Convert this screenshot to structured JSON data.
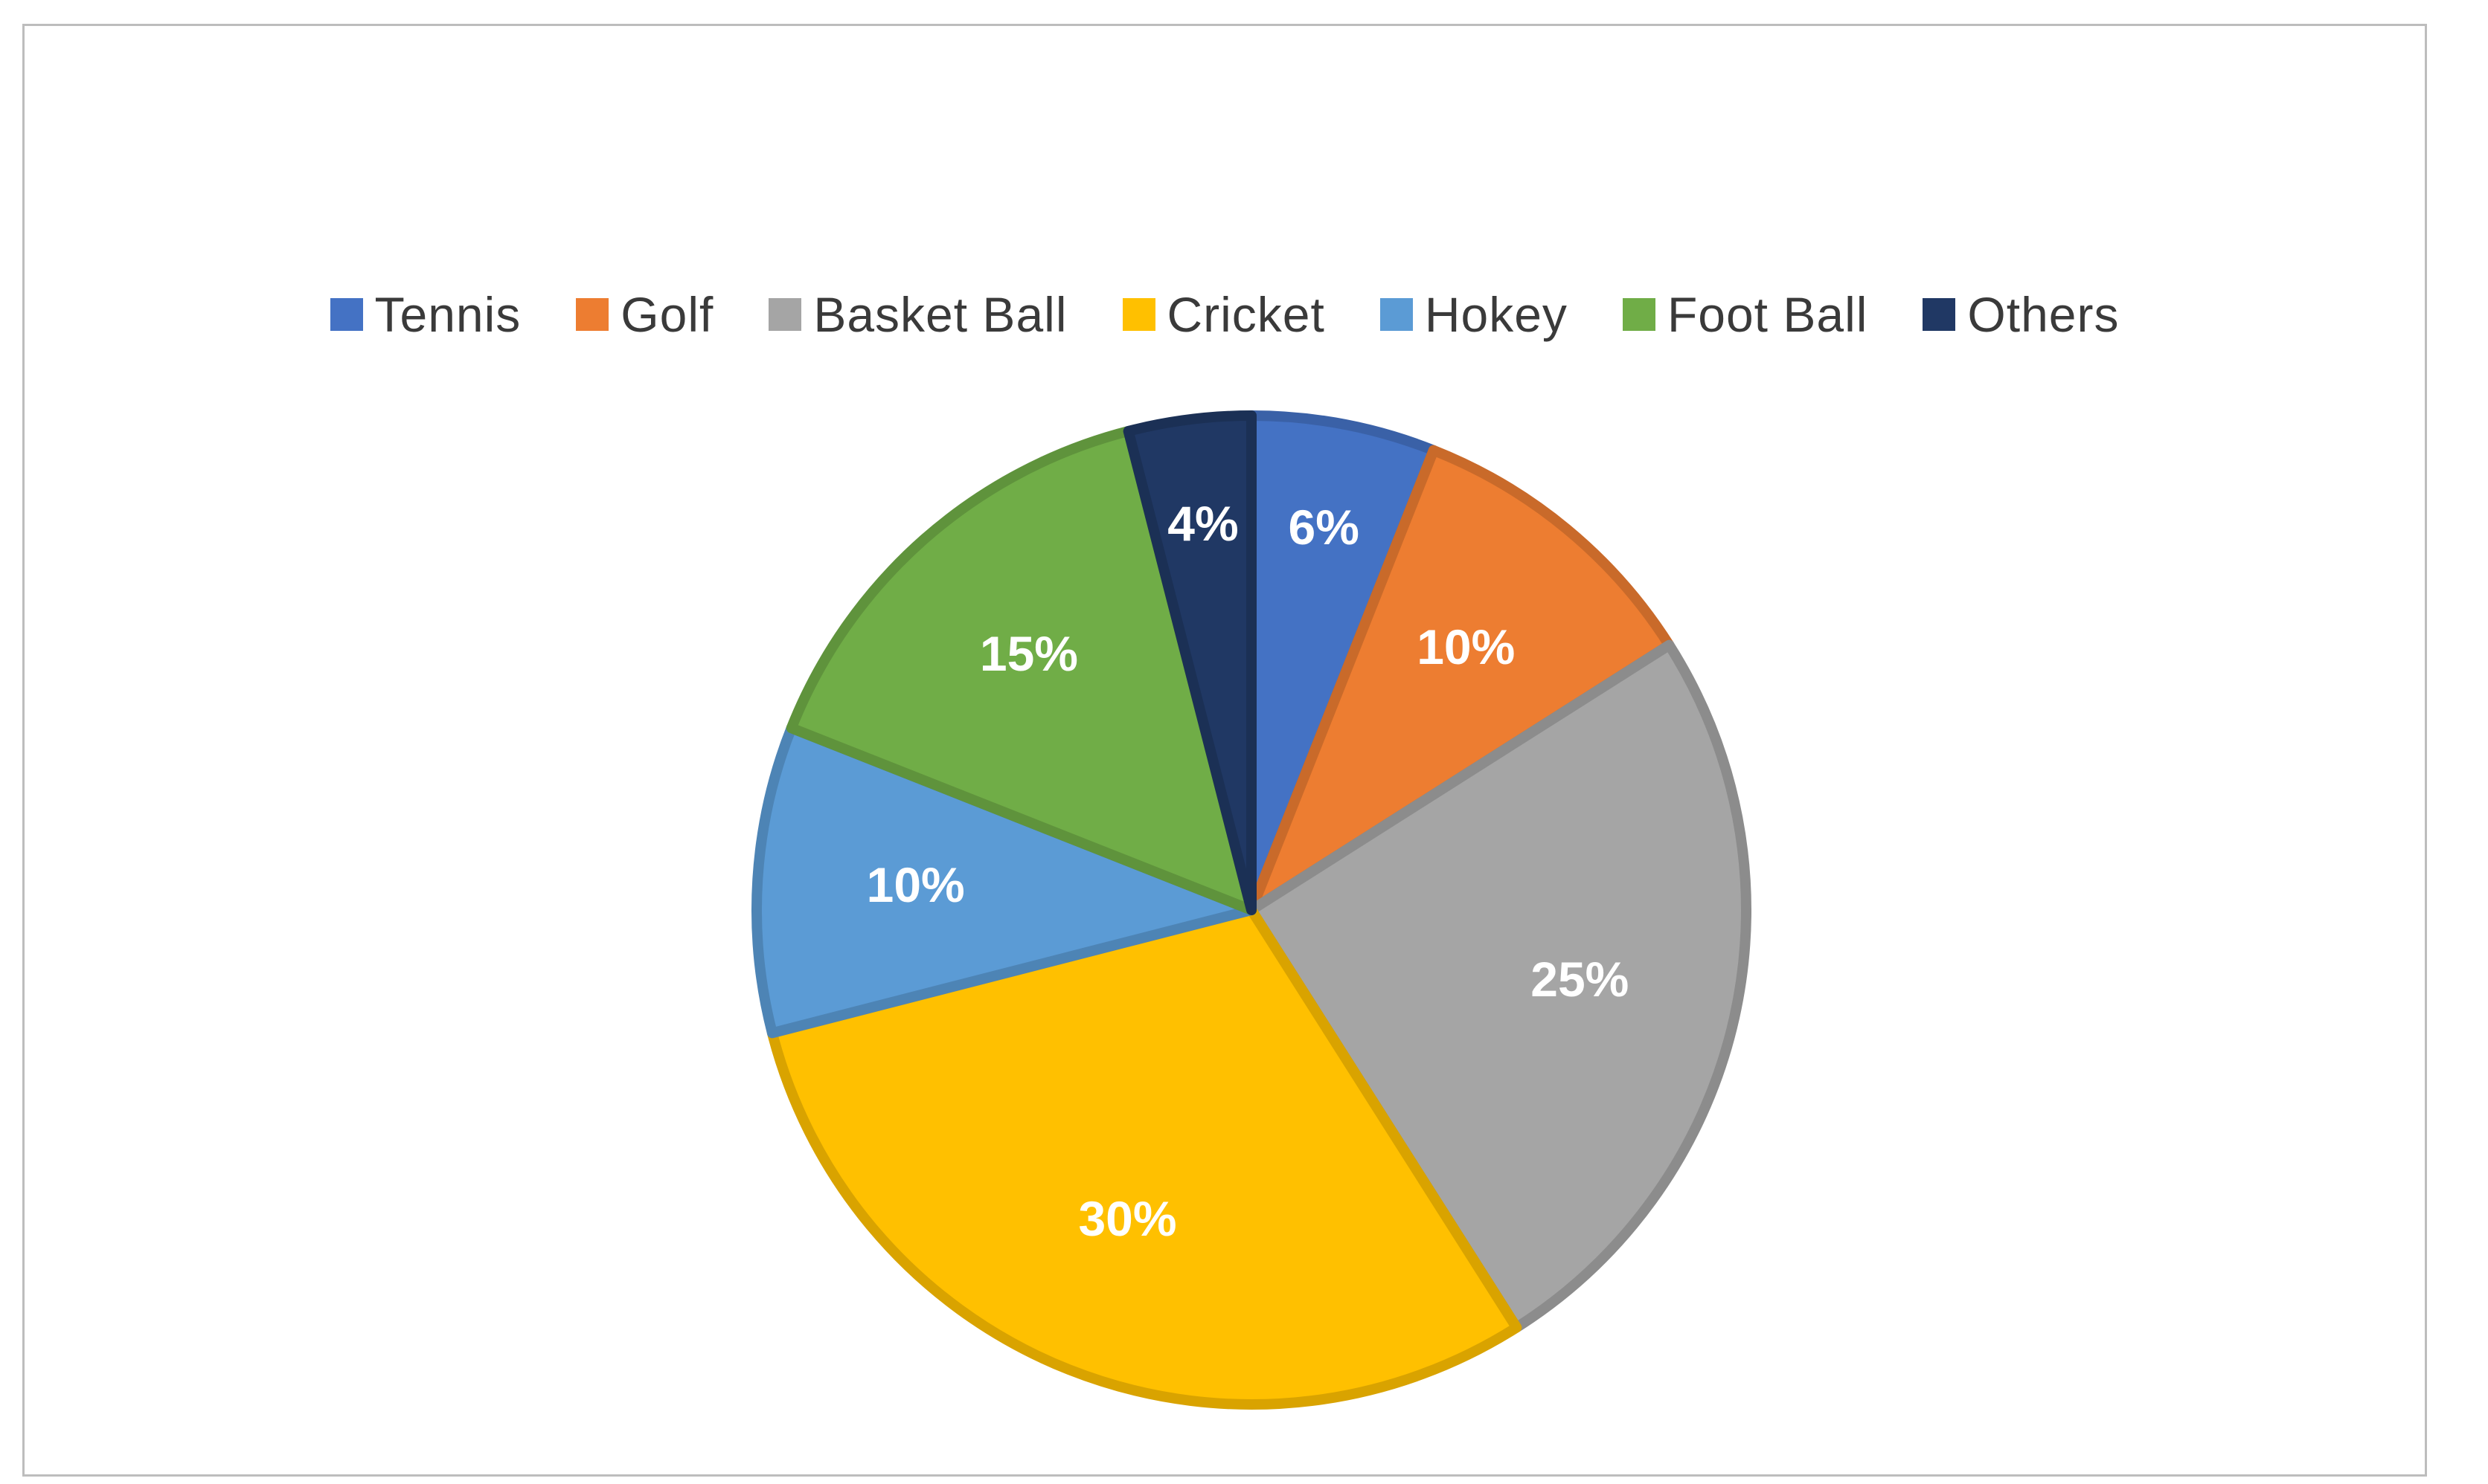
{
  "chart_data": {
    "type": "pie",
    "legend_position": "top",
    "slices": [
      {
        "label": "Tennis",
        "value": 6,
        "display": "6%",
        "color": "#4472C4"
      },
      {
        "label": "Golf",
        "value": 10,
        "display": "10%",
        "color": "#ED7D31"
      },
      {
        "label": "Basket Ball",
        "value": 25,
        "display": "25%",
        "color": "#A5A5A5"
      },
      {
        "label": "Cricket",
        "value": 30,
        "display": "30%",
        "color": "#FFC000"
      },
      {
        "label": "Hokey",
        "value": 10,
        "display": "10%",
        "color": "#5B9BD5"
      },
      {
        "label": "Foot Ball",
        "value": 15,
        "display": "15%",
        "color": "#70AD47"
      },
      {
        "label": "Others",
        "value": 4,
        "display": "4%",
        "color": "#203864"
      }
    ]
  }
}
